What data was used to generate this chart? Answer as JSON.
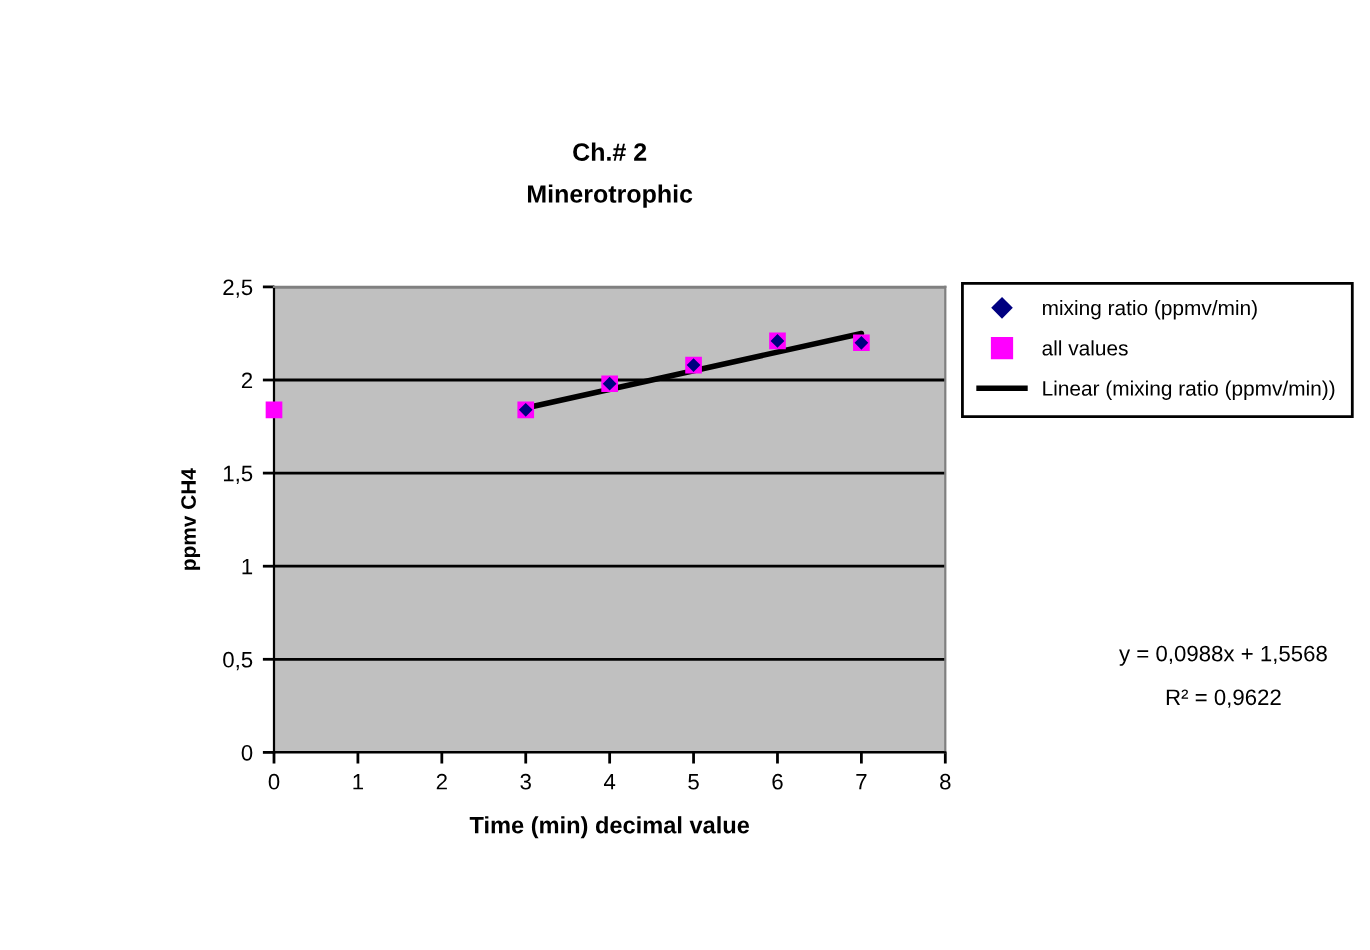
{
  "chart_data": {
    "type": "scatter",
    "title": "Ch.# 2",
    "subtitle": "Minerotrophic",
    "xlabel": "Time (min) decimal value",
    "ylabel": "ppmv CH4",
    "series": [
      {
        "name": "mixing ratio (ppmv/min)",
        "marker": "diamond",
        "color": "#000080",
        "x": [
          3,
          4,
          5,
          6,
          7
        ],
        "values": [
          1.84,
          1.98,
          2.08,
          2.21,
          2.2
        ]
      },
      {
        "name": "all values",
        "marker": "square",
        "color": "#ff00ff",
        "x": [
          0,
          3,
          4,
          5,
          6,
          7
        ],
        "values": [
          1.84,
          1.84,
          1.98,
          2.08,
          2.21,
          2.2
        ]
      },
      {
        "name": "Linear (mixing ratio (ppmv/min))",
        "type": "line",
        "marker": "none",
        "line_style": "solid",
        "color": "#000000",
        "x": [
          3,
          7
        ],
        "values": [
          1.85,
          2.25
        ]
      }
    ],
    "xlim": [
      0,
      8
    ],
    "xticks": [
      0,
      1,
      2,
      3,
      4,
      5,
      6,
      7,
      8
    ],
    "ylim": [
      0,
      2.5
    ],
    "yticks": [
      0,
      {
        "value": 0.5,
        "label": "0,5"
      },
      1,
      {
        "value": 1.5,
        "label": "1,5"
      },
      2,
      {
        "value": 2.5,
        "label": "2,5"
      }
    ],
    "grid": "y",
    "legend": "right",
    "annotations": [
      "y = 0,0988x + 1,5568",
      "R² = 0,9622"
    ]
  }
}
